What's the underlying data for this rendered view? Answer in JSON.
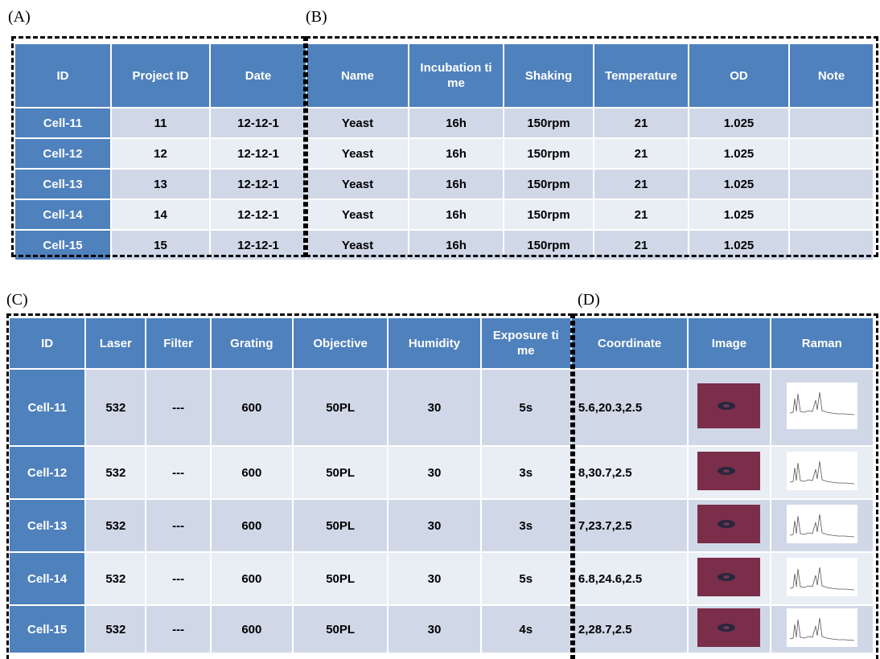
{
  "labels": [
    "(A)",
    "(B)",
    "(C)",
    "(D)"
  ],
  "table_top": {
    "header": [
      "ID",
      "Project ID",
      "Date",
      "Name",
      "Incubation time",
      "Shaking",
      "Temperature",
      "OD",
      "Note"
    ],
    "rows": [
      [
        "Cell-11",
        "11",
        "12-12-1",
        "Yeast",
        "16h",
        "150rpm",
        "21",
        "1.025"
      ],
      [
        "Cell-12",
        "12",
        "12-12-1",
        "Yeast",
        "16h",
        "150rpm",
        "21",
        "1.025"
      ],
      [
        "Cell-13",
        "13",
        "12-12-1",
        "Yeast",
        "16h",
        "150rpm",
        "21",
        "1.025"
      ],
      [
        "Cell-14",
        "14",
        "12-12-1",
        "Yeast",
        "16h",
        "150rpm",
        "21",
        "1.025"
      ],
      [
        "Cell-15",
        "15",
        "12-12-1",
        "Yeast",
        "16h",
        "150rpm",
        "21",
        "1.025"
      ]
    ]
  },
  "table_bottom": {
    "header": [
      "ID",
      "Laser",
      "Filter",
      "Grating",
      "Objective",
      "Humidity",
      "Exposure time",
      "Coordinate",
      "Image",
      "Raman"
    ],
    "rows": [
      [
        "Cell-11",
        "532",
        "---",
        "600",
        "50PL",
        "30",
        "5s",
        "5.6,20.3,2.5"
      ],
      [
        "Cell-12",
        "532",
        "---",
        "600",
        "50PL",
        "30",
        "3s",
        "8,30.7,2.5"
      ],
      [
        "Cell-13",
        "532",
        "---",
        "600",
        "50PL",
        "30",
        "3s",
        "7,23.7,2.5"
      ],
      [
        "Cell-14",
        "532",
        "---",
        "600",
        "50PL",
        "30",
        "5s",
        "6.8,24.6,2.5"
      ],
      [
        "Cell-15",
        "532",
        "---",
        "600",
        "50PL",
        "30",
        "4s",
        "2,28.7,2.5"
      ]
    ]
  }
}
